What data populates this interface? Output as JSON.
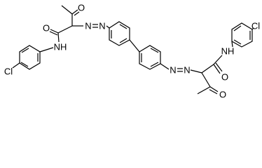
{
  "labels": {
    "left_ketone_o": "O",
    "left_amide_o": "O",
    "left_nh": "NH",
    "left_cl": "Cl",
    "left_azo_n1": "N",
    "left_azo_n2": "N",
    "right_azo_n1": "N",
    "right_azo_n2": "N",
    "right_nh": "NH",
    "right_amide_o": "O",
    "right_ketone_o": "O",
    "right_cl": "Cl"
  }
}
